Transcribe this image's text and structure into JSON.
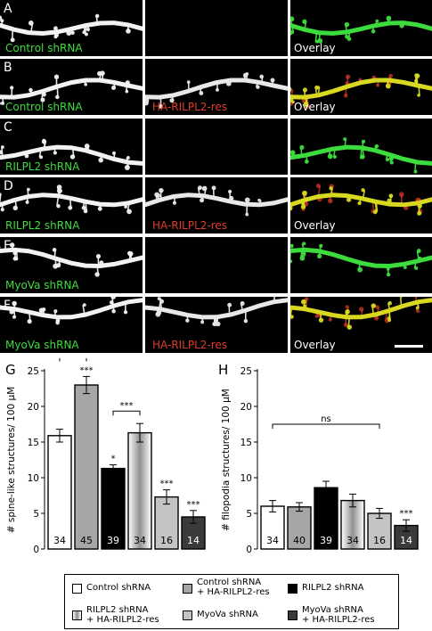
{
  "panels": [
    {
      "letter": "A",
      "left_label": "Control shRNA",
      "middle_label": "",
      "right_label": "Overlay",
      "overlay_mode": "green"
    },
    {
      "letter": "B",
      "left_label": "Control shRNA",
      "middle_label": "HA-RILPL2-res",
      "right_label": "Overlay",
      "overlay_mode": "merge"
    },
    {
      "letter": "C",
      "left_label": "RILPL2 shRNA",
      "middle_label": "",
      "right_label": "",
      "overlay_mode": "green"
    },
    {
      "letter": "D",
      "left_label": "RILPL2 shRNA",
      "middle_label": "HA-RILPL2-res",
      "right_label": "Overlay",
      "overlay_mode": "merge"
    },
    {
      "letter": "E",
      "left_label": "MyoVa shRNA",
      "middle_label": "",
      "right_label": "",
      "overlay_mode": "green"
    },
    {
      "letter": "F",
      "left_label": "MyoVa shRNA",
      "middle_label": "HA-RILPL2-res",
      "right_label": "Overlay",
      "overlay_mode": "merge"
    }
  ],
  "colors": {
    "green": "#3ddc3d",
    "red": "#e03a2a",
    "overlay_merge": "#d8d820"
  },
  "chart_data": [
    {
      "panel": "G",
      "type": "bar",
      "ylabel": "# spine-like structures/ 100 μM",
      "ylim": [
        0,
        25
      ],
      "yticks": [
        0,
        5,
        10,
        15,
        20,
        25
      ],
      "categories": [
        "Control shRNA",
        "Control shRNA + HA-RILPL2-res",
        "RILPL2 shRNA",
        "RILPL2 shRNA + HA-RILPL2-res",
        "MyoVa shRNA",
        "MyoVa shRNA + HA-RILPL2-res"
      ],
      "values": [
        15.9,
        23.0,
        11.3,
        16.3,
        7.3,
        4.5
      ],
      "errors": [
        0.9,
        1.2,
        0.5,
        1.3,
        1.0,
        0.9
      ],
      "n": [
        "34",
        "45",
        "39",
        "34",
        "16",
        "14"
      ],
      "stars": [
        "",
        "***",
        "*",
        "",
        "***",
        "***"
      ],
      "brackets": [
        {
          "from": 0,
          "to": 1,
          "label": "***"
        },
        {
          "from": 2,
          "to": 3,
          "label": "***"
        }
      ]
    },
    {
      "panel": "H",
      "type": "bar",
      "ylabel": "# filopodia structures/ 100 μM",
      "ylim": [
        0,
        25
      ],
      "yticks": [
        0,
        5,
        10,
        15,
        20,
        25
      ],
      "categories": [
        "Control shRNA",
        "Control shRNA + HA-RILPL2-res",
        "RILPL2 shRNA",
        "RILPL2 shRNA + HA-RILPL2-res",
        "MyoVa shRNA",
        "MyoVa shRNA + HA-RILPL2-res"
      ],
      "values": [
        6.0,
        5.9,
        8.6,
        6.8,
        5.0,
        3.3
      ],
      "errors": [
        0.8,
        0.6,
        0.9,
        0.9,
        0.7,
        0.8
      ],
      "n": [
        "34",
        "40",
        "39",
        "34",
        "16",
        "14"
      ],
      "stars": [
        "",
        "",
        "",
        "",
        "",
        "***"
      ],
      "brackets": [
        {
          "from": 0,
          "to": 4,
          "label": "ns"
        }
      ]
    }
  ],
  "legend": {
    "items": [
      {
        "line1": "Control shRNA",
        "line2": "",
        "style": "white"
      },
      {
        "line1": "Control shRNA",
        "line2": "+ HA-RILPL2-res",
        "style": "gray"
      },
      {
        "line1": "RILPL2 shRNA",
        "line2": "",
        "style": "black"
      },
      {
        "line1": "RILPL2 shRNA",
        "line2": "+ HA-RILPL2-res",
        "style": "gradient"
      },
      {
        "line1": "MyoVa shRNA",
        "line2": "",
        "style": "lightgray"
      },
      {
        "line1": "MyoVa shRNA",
        "line2": "+ HA-RILPL2-res",
        "style": "dark"
      }
    ]
  },
  "bar_styles": {
    "white": "#ffffff",
    "gray": "#a6a6a6",
    "black": "#000000",
    "lightgray": "#c4c4c4",
    "dark": "#3a3a3a"
  }
}
